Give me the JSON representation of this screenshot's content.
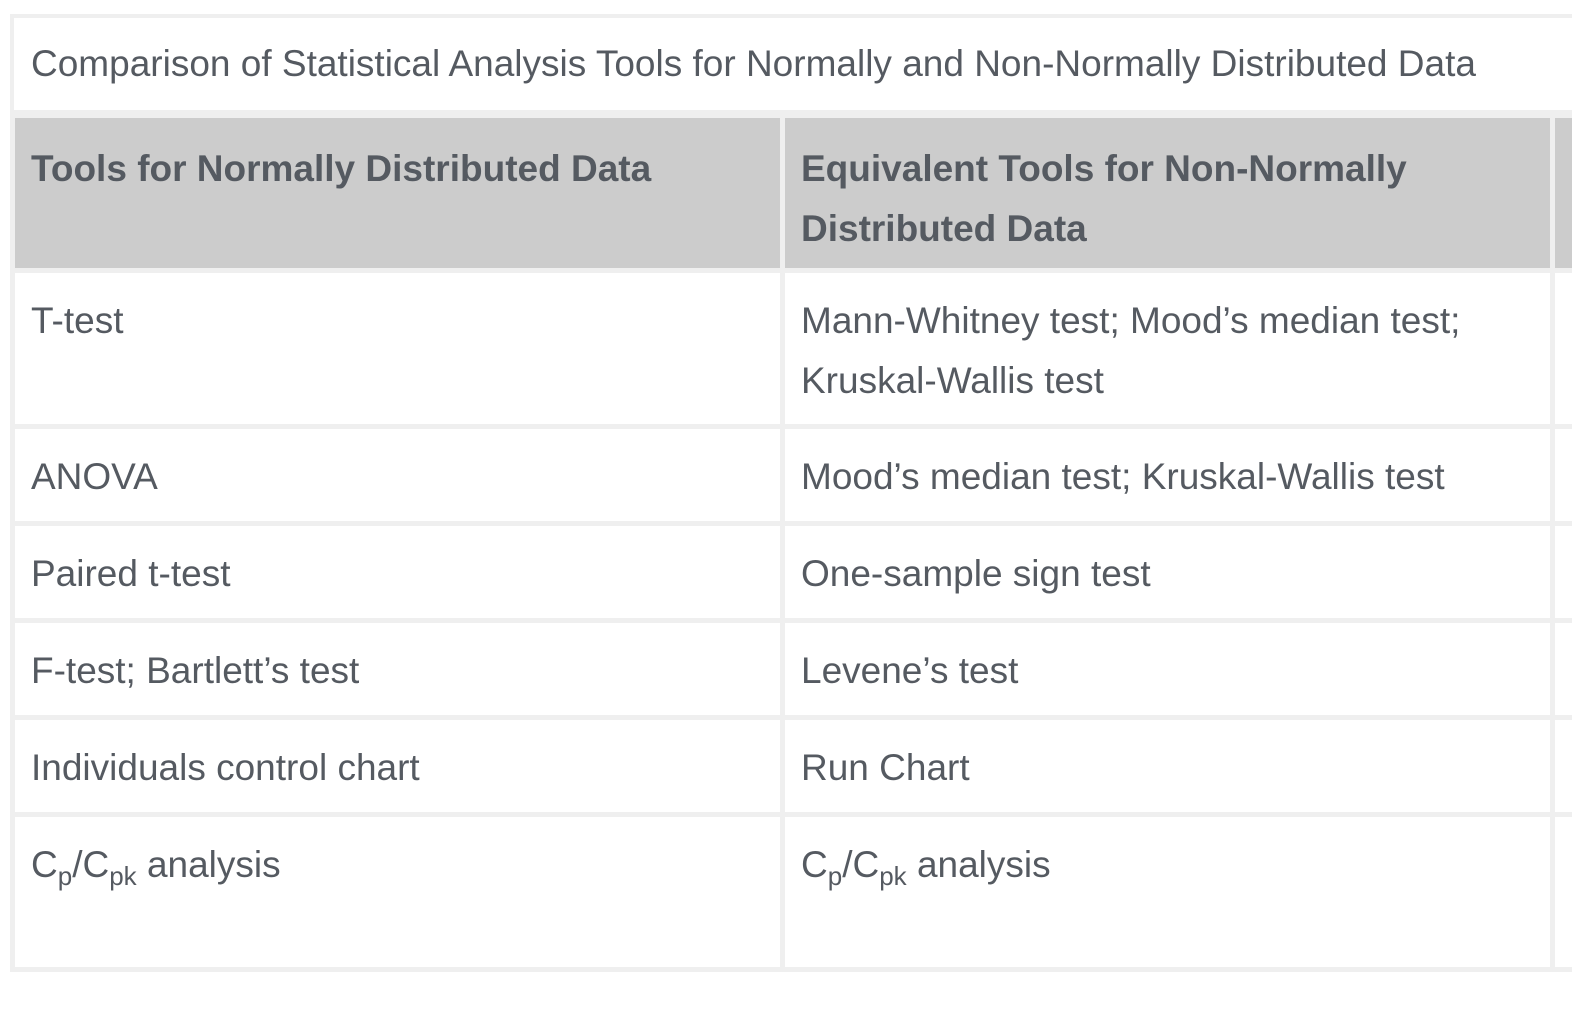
{
  "table": {
    "caption": "Comparison of Statistical Analysis Tools for Normally and Non-Normally Distributed Data",
    "headers": [
      "Tools for Normally Distributed Data",
      "Equivalent Tools for Non-Normally Distributed Data",
      ""
    ],
    "rows": [
      {
        "normal": "T-test",
        "non_normal": "Mann-Whitney test; Mood’s median test; Kruskal-Wallis test"
      },
      {
        "normal": "ANOVA",
        "non_normal": "Mood’s median test; Kruskal-Wallis test"
      },
      {
        "normal": "Paired t-test",
        "non_normal": "One-sample sign test"
      },
      {
        "normal": "F-test; Bartlett’s test",
        "non_normal": "Levene’s test"
      },
      {
        "normal": "Individuals control chart",
        "non_normal": "Run Chart"
      }
    ],
    "cp_row": {
      "normal": {
        "c1": "C",
        "s1": "p",
        "sep": "/C",
        "s2": "pk",
        "tail": " analysis"
      },
      "non_normal": {
        "c1": "C",
        "s1": "p",
        "sep": "/C",
        "s2": "pk",
        "tail": " analysis"
      }
    }
  }
}
